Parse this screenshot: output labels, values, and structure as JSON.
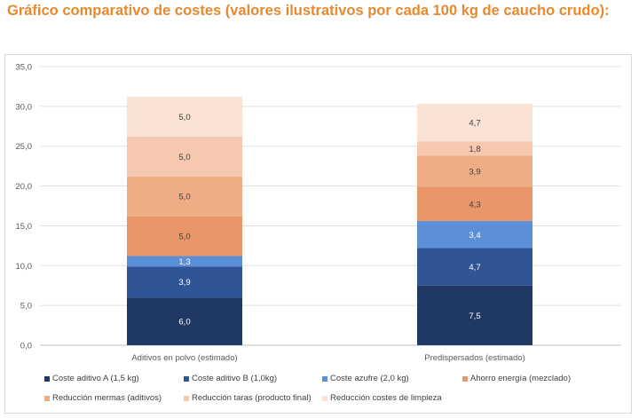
{
  "title": "Gráfico comparativo de costes (valores ilustrativos por cada 100 kg de caucho crudo):",
  "chart_data": {
    "type": "stacked-bar",
    "categories": [
      "Aditivos en polvo (estimado)",
      "Predispersados (estimado)"
    ],
    "ylim": [
      0,
      35
    ],
    "yticks": [
      "0,0",
      "5,0",
      "10,0",
      "15,0",
      "20,0",
      "25,0",
      "30,0",
      "35,0"
    ],
    "grid": true,
    "legend": "bottom",
    "series": [
      {
        "name": "Coste aditivo A (1,5 kg)",
        "values": [
          6.0,
          7.5
        ],
        "labels": [
          "6,0",
          "7,5"
        ],
        "color": "#203864"
      },
      {
        "name": "Coste aditivo B (1,0kg)",
        "values": [
          3.9,
          4.7
        ],
        "labels": [
          "3,9",
          "4,7"
        ],
        "color": "#2F5597"
      },
      {
        "name": "Coste azufre (2,0 kg)",
        "values": [
          1.3,
          3.4
        ],
        "labels": [
          "1,3",
          "3,4"
        ],
        "color": "#5B8FD8"
      },
      {
        "name": "Ahorro energía (mezclado)",
        "values": [
          5.0,
          4.3
        ],
        "labels": [
          "5,0",
          "4,3"
        ],
        "color": "#E9976A"
      },
      {
        "name": "Reducción mermas (aditivos)",
        "values": [
          5.0,
          3.9
        ],
        "labels": [
          "5,0",
          "3,9"
        ],
        "color": "#EFAD86"
      },
      {
        "name": "Reducción taras (producto final)",
        "values": [
          5.0,
          1.8
        ],
        "labels": [
          "5,0",
          "1,8"
        ],
        "color": "#F5C8AF"
      },
      {
        "name": "Reducción costes de limpieza",
        "values": [
          5.0,
          4.7
        ],
        "labels": [
          "5,0",
          "4,7"
        ],
        "color": "#FAE2D4"
      }
    ]
  }
}
